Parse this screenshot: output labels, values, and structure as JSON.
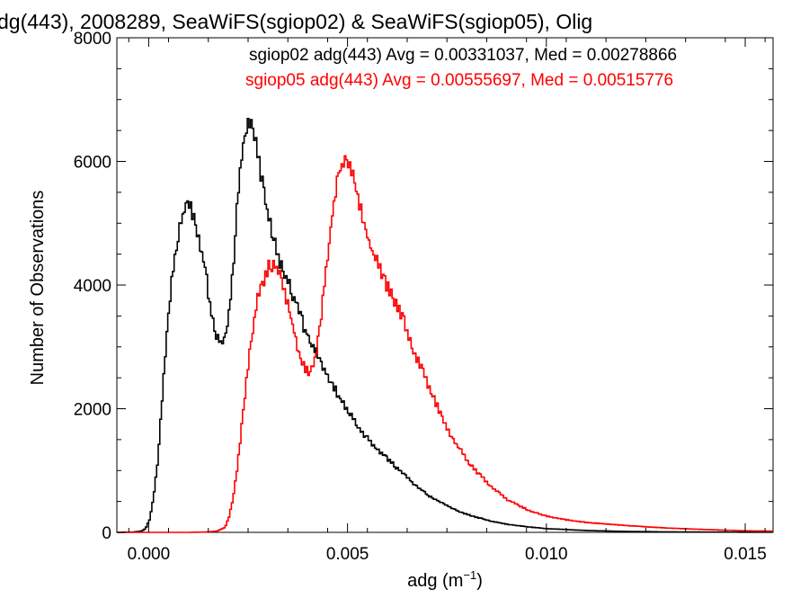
{
  "chart_data": {
    "type": "histogram-step",
    "title": "dg(443), 2008289, SeaWiFS(sgiop02) & SeaWiFS(sgiop05), Olig",
    "xlabel_base": "adg (m",
    "xlabel_sup": "−1",
    "xlabel_end": ")",
    "ylabel": "Number of Observations",
    "xlim": [
      -0.0008,
      0.0157
    ],
    "ylim": [
      0,
      8000
    ],
    "xticks": [
      {
        "value": 0.0,
        "label": "0.000"
      },
      {
        "value": 0.005,
        "label": "0.005"
      },
      {
        "value": 0.01,
        "label": "0.010"
      },
      {
        "value": 0.015,
        "label": "0.015"
      }
    ],
    "yticks": [
      {
        "value": 0,
        "label": "0"
      },
      {
        "value": 2000,
        "label": "2000"
      },
      {
        "value": 4000,
        "label": "4000"
      },
      {
        "value": 6000,
        "label": "6000"
      },
      {
        "value": 8000,
        "label": "8000"
      }
    ],
    "series": [
      {
        "name": "sgiop02 adg(443)",
        "legend_text": "sgiop02 adg(443) Avg = 0.00331037, Med = 0.00278866",
        "avg": 0.00331037,
        "median": 0.00278866,
        "color": "#000000",
        "points": [
          [
            -0.0008,
            0
          ],
          [
            -0.0004,
            5
          ],
          [
            -0.0002,
            20
          ],
          [
            -0.0001,
            60
          ],
          [
            0.0,
            200
          ],
          [
            0.0001,
            550
          ],
          [
            0.0002,
            1100
          ],
          [
            0.0003,
            2000
          ],
          [
            0.0004,
            2900
          ],
          [
            0.0005,
            3700
          ],
          [
            0.0006,
            4300
          ],
          [
            0.0007,
            4750
          ],
          [
            0.0008,
            5050
          ],
          [
            0.0009,
            5250
          ],
          [
            0.001,
            5280
          ],
          [
            0.0011,
            5150
          ],
          [
            0.0012,
            4900
          ],
          [
            0.0013,
            4600
          ],
          [
            0.0014,
            4250
          ],
          [
            0.0015,
            3800
          ],
          [
            0.0016,
            3400
          ],
          [
            0.0017,
            3150
          ],
          [
            0.0018,
            3050
          ],
          [
            0.0019,
            3150
          ],
          [
            0.002,
            3500
          ],
          [
            0.0021,
            4200
          ],
          [
            0.0022,
            5200
          ],
          [
            0.0023,
            6000
          ],
          [
            0.0024,
            6400
          ],
          [
            0.0025,
            6650
          ],
          [
            0.0026,
            6550
          ],
          [
            0.0027,
            6200
          ],
          [
            0.0028,
            5800
          ],
          [
            0.0029,
            5400
          ],
          [
            0.003,
            5100
          ],
          [
            0.0031,
            4800
          ],
          [
            0.0032,
            4550
          ],
          [
            0.0033,
            4300
          ],
          [
            0.0034,
            4150
          ],
          [
            0.0035,
            4000
          ],
          [
            0.0036,
            3850
          ],
          [
            0.0037,
            3700
          ],
          [
            0.0038,
            3500
          ],
          [
            0.0039,
            3300
          ],
          [
            0.004,
            3150
          ],
          [
            0.0042,
            2900
          ],
          [
            0.0044,
            2650
          ],
          [
            0.0046,
            2400
          ],
          [
            0.0048,
            2150
          ],
          [
            0.005,
            1950
          ],
          [
            0.0052,
            1750
          ],
          [
            0.0055,
            1500
          ],
          [
            0.0058,
            1300
          ],
          [
            0.0061,
            1120
          ],
          [
            0.0064,
            930
          ],
          [
            0.0067,
            760
          ],
          [
            0.007,
            600
          ],
          [
            0.0074,
            460
          ],
          [
            0.0078,
            330
          ],
          [
            0.0082,
            250
          ],
          [
            0.0086,
            180
          ],
          [
            0.009,
            130
          ],
          [
            0.0095,
            90
          ],
          [
            0.01,
            60
          ],
          [
            0.011,
            30
          ],
          [
            0.012,
            15
          ],
          [
            0.013,
            8
          ],
          [
            0.014,
            5
          ],
          [
            0.015,
            3
          ],
          [
            0.0157,
            2
          ]
        ]
      },
      {
        "name": "sgiop05 adg(443)",
        "legend_text": "sgiop05 adg(443) Avg = 0.00555697, Med = 0.00515776",
        "avg": 0.00555697,
        "median": 0.00515776,
        "color": "#ff0000",
        "points": [
          [
            -0.0008,
            0
          ],
          [
            0.001,
            0
          ],
          [
            0.0014,
            5
          ],
          [
            0.0017,
            20
          ],
          [
            0.0019,
            80
          ],
          [
            0.002,
            250
          ],
          [
            0.0021,
            550
          ],
          [
            0.0022,
            1000
          ],
          [
            0.0023,
            1600
          ],
          [
            0.0024,
            2200
          ],
          [
            0.0025,
            2800
          ],
          [
            0.0026,
            3300
          ],
          [
            0.0027,
            3700
          ],
          [
            0.0028,
            3950
          ],
          [
            0.0029,
            4150
          ],
          [
            0.003,
            4300
          ],
          [
            0.0031,
            4350
          ],
          [
            0.0032,
            4250
          ],
          [
            0.0033,
            4100
          ],
          [
            0.0034,
            3900
          ],
          [
            0.0035,
            3650
          ],
          [
            0.0036,
            3350
          ],
          [
            0.0037,
            3050
          ],
          [
            0.0038,
            2800
          ],
          [
            0.0039,
            2650
          ],
          [
            0.004,
            2580
          ],
          [
            0.0041,
            2650
          ],
          [
            0.0042,
            2900
          ],
          [
            0.0043,
            3400
          ],
          [
            0.0044,
            4000
          ],
          [
            0.0045,
            4600
          ],
          [
            0.0046,
            5150
          ],
          [
            0.0047,
            5600
          ],
          [
            0.0048,
            5900
          ],
          [
            0.0049,
            6050
          ],
          [
            0.005,
            6000
          ],
          [
            0.0051,
            5850
          ],
          [
            0.0052,
            5550
          ],
          [
            0.0053,
            5250
          ],
          [
            0.0054,
            4950
          ],
          [
            0.0055,
            4750
          ],
          [
            0.0056,
            4550
          ],
          [
            0.0057,
            4400
          ],
          [
            0.0058,
            4250
          ],
          [
            0.0059,
            4100
          ],
          [
            0.006,
            3950
          ],
          [
            0.0062,
            3700
          ],
          [
            0.0064,
            3400
          ],
          [
            0.0066,
            3000
          ],
          [
            0.0068,
            2700
          ],
          [
            0.007,
            2400
          ],
          [
            0.0072,
            2100
          ],
          [
            0.0074,
            1800
          ],
          [
            0.0076,
            1550
          ],
          [
            0.0078,
            1350
          ],
          [
            0.008,
            1150
          ],
          [
            0.0082,
            1000
          ],
          [
            0.0084,
            870
          ],
          [
            0.0086,
            740
          ],
          [
            0.0088,
            630
          ],
          [
            0.009,
            530
          ],
          [
            0.0093,
            430
          ],
          [
            0.0096,
            340
          ],
          [
            0.01,
            260
          ],
          [
            0.0105,
            200
          ],
          [
            0.011,
            160
          ],
          [
            0.012,
            110
          ],
          [
            0.013,
            70
          ],
          [
            0.014,
            45
          ],
          [
            0.015,
            25
          ],
          [
            0.0157,
            20
          ]
        ]
      }
    ]
  }
}
